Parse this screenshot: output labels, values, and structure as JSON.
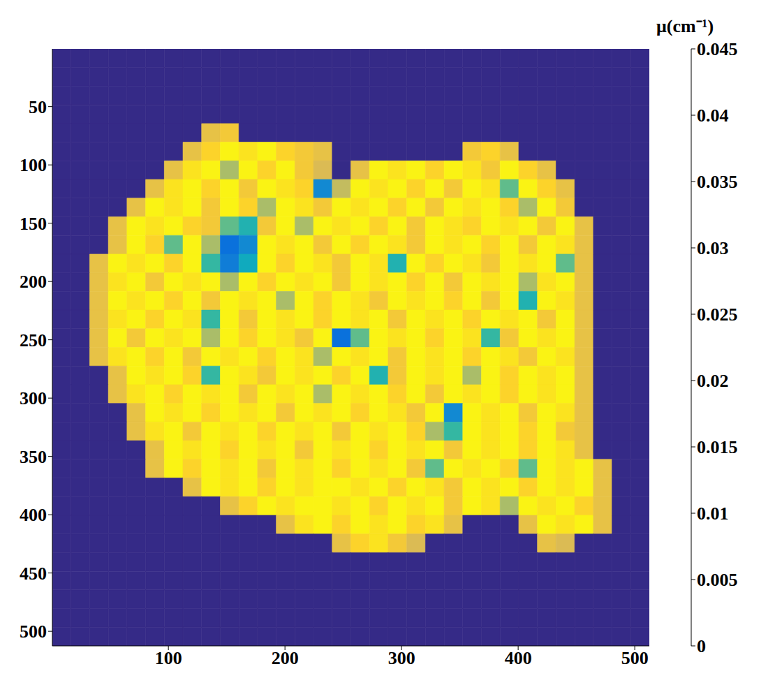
{
  "chart_data": {
    "type": "heatmap",
    "x": [
      8.5,
      24.5,
      40.5,
      56.5,
      72.5,
      88.5,
      104.5,
      120.5,
      136.5,
      152.5,
      168.5,
      184.5,
      200.5,
      216.5,
      232.5,
      248.5,
      264.5,
      280.5,
      296.5,
      312.5,
      328.5,
      344.5,
      360.5,
      376.5,
      392.5,
      408.5,
      424.5,
      440.5,
      456.5,
      472.5,
      488.5,
      504.5
    ],
    "y": [
      8.5,
      24.5,
      40.5,
      56.5,
      72.5,
      88.5,
      104.5,
      120.5,
      136.5,
      152.5,
      168.5,
      184.5,
      200.5,
      216.5,
      232.5,
      248.5,
      264.5,
      280.5,
      296.5,
      312.5,
      328.5,
      344.5,
      360.5,
      376.5,
      392.5,
      408.5,
      424.5,
      440.5,
      456.5,
      472.5,
      488.5,
      504.5
    ],
    "cells": [
      [
        0,
        0,
        0,
        0,
        0,
        0,
        0,
        0,
        0,
        0,
        0,
        0,
        0,
        0,
        0,
        0,
        0,
        0,
        0,
        0,
        0,
        0,
        0,
        0,
        0,
        0,
        0,
        0,
        0,
        0,
        0,
        0
      ],
      [
        0,
        0,
        0,
        0,
        0,
        0,
        0,
        0,
        0,
        0,
        0,
        0,
        0,
        0,
        0,
        0,
        0,
        0,
        0,
        0,
        0,
        0,
        0,
        0,
        0,
        0,
        0,
        0,
        0,
        0,
        0,
        0
      ],
      [
        0,
        0,
        0,
        0,
        0,
        0,
        0,
        0,
        0,
        0,
        0,
        0,
        0,
        0,
        0,
        0,
        0,
        0,
        0,
        0,
        0,
        0,
        0,
        0,
        0,
        0,
        0,
        0,
        0,
        0,
        0,
        0
      ],
      [
        0,
        0,
        0,
        0,
        0,
        0,
        0,
        0,
        0,
        0,
        0,
        0,
        0,
        0,
        0,
        0,
        0,
        0,
        0,
        0,
        0,
        0,
        0,
        0,
        0,
        0,
        0,
        0,
        0,
        0,
        0,
        0
      ],
      [
        0,
        0,
        0,
        0,
        0,
        0,
        0,
        0,
        0.036,
        0.038,
        0,
        0,
        0,
        0,
        0,
        0,
        0,
        0,
        0,
        0,
        0,
        0,
        0,
        0,
        0,
        0,
        0,
        0,
        0,
        0,
        0,
        0
      ],
      [
        0,
        0,
        0,
        0,
        0,
        0,
        0,
        0.036,
        0.04,
        0.044,
        0.042,
        0.044,
        0.04,
        0.038,
        0.036,
        0,
        0,
        0,
        0,
        0,
        0,
        0,
        0.038,
        0.04,
        0.036,
        0,
        0,
        0,
        0,
        0,
        0,
        0
      ],
      [
        0,
        0,
        0,
        0,
        0,
        0,
        0.036,
        0.042,
        0.044,
        0.03,
        0.044,
        0.04,
        0.044,
        0.038,
        0.034,
        0,
        0.036,
        0.044,
        0.042,
        0.044,
        0.04,
        0.044,
        0.042,
        0.038,
        0.044,
        0.04,
        0.036,
        0,
        0,
        0,
        0,
        0
      ],
      [
        0,
        0,
        0,
        0,
        0,
        0.036,
        0.042,
        0.044,
        0.04,
        0.044,
        0.038,
        0.044,
        0.042,
        0.04,
        0.012,
        0.032,
        0.044,
        0.042,
        0.044,
        0.04,
        0.044,
        0.038,
        0.044,
        0.042,
        0.025,
        0.044,
        0.04,
        0.036,
        0,
        0,
        0,
        0
      ],
      [
        0,
        0,
        0,
        0,
        0.036,
        0.044,
        0.042,
        0.044,
        0.038,
        0.044,
        0.04,
        0.03,
        0.044,
        0.042,
        0.038,
        0.044,
        0.042,
        0.044,
        0.04,
        0.044,
        0.038,
        0.044,
        0.042,
        0.044,
        0.04,
        0.03,
        0.044,
        0.038,
        0,
        0,
        0,
        0
      ],
      [
        0,
        0,
        0,
        0.036,
        0.044,
        0.042,
        0.044,
        0.04,
        0.038,
        0.025,
        0.02,
        0.038,
        0.044,
        0.03,
        0.044,
        0.042,
        0.044,
        0.04,
        0.044,
        0.038,
        0.044,
        0.042,
        0.04,
        0.044,
        0.042,
        0.044,
        0.038,
        0.044,
        0.036,
        0,
        0,
        0
      ],
      [
        0,
        0,
        0,
        0.036,
        0.044,
        0.04,
        0.025,
        0.044,
        0.03,
        0.008,
        0.012,
        0.044,
        0.042,
        0.044,
        0.038,
        0.044,
        0.04,
        0.044,
        0.042,
        0.038,
        0.044,
        0.042,
        0.044,
        0.04,
        0.044,
        0.038,
        0.044,
        0.042,
        0.036,
        0,
        0,
        0
      ],
      [
        0,
        0,
        0.036,
        0.044,
        0.042,
        0.044,
        0.04,
        0.044,
        0.022,
        0.01,
        0.018,
        0.044,
        0.04,
        0.044,
        0.042,
        0.038,
        0.044,
        0.042,
        0.02,
        0.044,
        0.04,
        0.044,
        0.042,
        0.038,
        0.044,
        0.042,
        0.044,
        0.025,
        0.036,
        0,
        0,
        0
      ],
      [
        0,
        0,
        0.036,
        0.042,
        0.044,
        0.038,
        0.044,
        0.042,
        0.044,
        0.03,
        0.044,
        0.04,
        0.044,
        0.042,
        0.044,
        0.038,
        0.044,
        0.042,
        0.044,
        0.04,
        0.044,
        0.038,
        0.044,
        0.042,
        0.044,
        0.03,
        0.042,
        0.044,
        0.036,
        0,
        0,
        0
      ],
      [
        0,
        0,
        0.036,
        0.044,
        0.042,
        0.044,
        0.04,
        0.044,
        0.038,
        0.044,
        0.042,
        0.044,
        0.03,
        0.044,
        0.04,
        0.044,
        0.042,
        0.038,
        0.044,
        0.042,
        0.044,
        0.04,
        0.044,
        0.038,
        0.044,
        0.02,
        0.044,
        0.042,
        0.036,
        0,
        0,
        0
      ],
      [
        0,
        0,
        0.036,
        0.042,
        0.044,
        0.04,
        0.044,
        0.042,
        0.022,
        0.044,
        0.038,
        0.044,
        0.042,
        0.044,
        0.04,
        0.044,
        0.042,
        0.044,
        0.038,
        0.044,
        0.042,
        0.044,
        0.04,
        0.044,
        0.042,
        0.044,
        0.038,
        0.044,
        0.036,
        0,
        0,
        0
      ],
      [
        0,
        0,
        0.036,
        0.044,
        0.038,
        0.044,
        0.042,
        0.044,
        0.03,
        0.044,
        0.04,
        0.044,
        0.042,
        0.038,
        0.044,
        0.008,
        0.025,
        0.044,
        0.042,
        0.044,
        0.04,
        0.044,
        0.042,
        0.022,
        0.038,
        0.044,
        0.042,
        0.044,
        0.036,
        0,
        0,
        0
      ],
      [
        0,
        0,
        0.036,
        0.042,
        0.044,
        0.04,
        0.044,
        0.038,
        0.044,
        0.042,
        0.044,
        0.04,
        0.044,
        0.042,
        0.03,
        0.044,
        0.042,
        0.044,
        0.038,
        0.044,
        0.042,
        0.044,
        0.04,
        0.044,
        0.042,
        0.038,
        0.044,
        0.042,
        0.036,
        0,
        0,
        0
      ],
      [
        0,
        0,
        0,
        0.036,
        0.044,
        0.042,
        0.044,
        0.04,
        0.022,
        0.044,
        0.042,
        0.038,
        0.044,
        0.042,
        0.044,
        0.04,
        0.044,
        0.02,
        0.038,
        0.044,
        0.042,
        0.044,
        0.03,
        0.044,
        0.04,
        0.044,
        0.042,
        0.044,
        0.036,
        0,
        0,
        0
      ],
      [
        0,
        0,
        0,
        0.036,
        0.042,
        0.044,
        0.04,
        0.044,
        0.042,
        0.044,
        0.038,
        0.044,
        0.042,
        0.044,
        0.03,
        0.044,
        0.042,
        0.044,
        0.04,
        0.044,
        0.038,
        0.044,
        0.042,
        0.044,
        0.04,
        0.044,
        0.042,
        0.044,
        0.036,
        0,
        0,
        0
      ],
      [
        0,
        0,
        0,
        0,
        0.036,
        0.044,
        0.042,
        0.044,
        0.04,
        0.044,
        0.042,
        0.044,
        0.038,
        0.044,
        0.042,
        0.044,
        0.04,
        0.044,
        0.042,
        0.038,
        0.044,
        0.012,
        0.044,
        0.042,
        0.044,
        0.038,
        0.044,
        0.042,
        0.036,
        0,
        0,
        0
      ],
      [
        0,
        0,
        0,
        0,
        0.036,
        0.042,
        0.044,
        0.038,
        0.044,
        0.042,
        0.044,
        0.04,
        0.044,
        0.042,
        0.044,
        0.038,
        0.044,
        0.042,
        0.044,
        0.04,
        0.03,
        0.022,
        0.044,
        0.042,
        0.044,
        0.04,
        0.044,
        0.038,
        0.036,
        0,
        0,
        0
      ],
      [
        0,
        0,
        0,
        0,
        0,
        0.036,
        0.044,
        0.042,
        0.044,
        0.04,
        0.044,
        0.042,
        0.044,
        0.038,
        0.044,
        0.042,
        0.044,
        0.04,
        0.044,
        0.042,
        0.044,
        0.038,
        0.044,
        0.042,
        0.044,
        0.04,
        0.044,
        0.042,
        0.036,
        0,
        0,
        0
      ],
      [
        0,
        0,
        0,
        0,
        0,
        0.036,
        0.044,
        0.04,
        0.044,
        0.042,
        0.044,
        0.038,
        0.044,
        0.042,
        0.044,
        0.04,
        0.044,
        0.042,
        0.044,
        0.038,
        0.025,
        0.044,
        0.042,
        0.044,
        0.04,
        0.025,
        0.044,
        0.042,
        0.044,
        0.036,
        0,
        0
      ],
      [
        0,
        0,
        0,
        0,
        0,
        0,
        0,
        0.036,
        0.044,
        0.042,
        0.044,
        0.04,
        0.044,
        0.042,
        0.044,
        0.044,
        0.042,
        0.044,
        0.04,
        0.044,
        0.042,
        0.038,
        0.044,
        0.042,
        0.044,
        0.04,
        0.044,
        0.042,
        0.044,
        0.036,
        0,
        0
      ],
      [
        0,
        0,
        0,
        0,
        0,
        0,
        0,
        0,
        0,
        0.036,
        0.04,
        0.044,
        0.042,
        0.044,
        0.044,
        0.042,
        0.044,
        0.04,
        0.044,
        0.042,
        0.044,
        0.038,
        0.044,
        0.042,
        0.03,
        0.044,
        0.042,
        0.044,
        0.04,
        0.036,
        0,
        0
      ],
      [
        0,
        0,
        0,
        0,
        0,
        0,
        0,
        0,
        0,
        0,
        0,
        0,
        0.036,
        0.042,
        0.044,
        0.04,
        0.044,
        0.042,
        0.044,
        0.04,
        0.042,
        0.036,
        0,
        0,
        0,
        0.036,
        0.044,
        0.042,
        0.044,
        0.036,
        0,
        0
      ],
      [
        0,
        0,
        0,
        0,
        0,
        0,
        0,
        0,
        0,
        0,
        0,
        0,
        0,
        0,
        0,
        0.036,
        0.04,
        0.042,
        0.038,
        0.034,
        0,
        0,
        0,
        0,
        0,
        0,
        0.036,
        0.034,
        0,
        0,
        0,
        0
      ],
      [
        0,
        0,
        0,
        0,
        0,
        0,
        0,
        0,
        0,
        0,
        0,
        0,
        0,
        0,
        0,
        0,
        0,
        0,
        0,
        0,
        0,
        0,
        0,
        0,
        0,
        0,
        0,
        0,
        0,
        0,
        0,
        0
      ],
      [
        0,
        0,
        0,
        0,
        0,
        0,
        0,
        0,
        0,
        0,
        0,
        0,
        0,
        0,
        0,
        0,
        0,
        0,
        0,
        0,
        0,
        0,
        0,
        0,
        0,
        0,
        0,
        0,
        0,
        0,
        0,
        0
      ],
      [
        0,
        0,
        0,
        0,
        0,
        0,
        0,
        0,
        0,
        0,
        0,
        0,
        0,
        0,
        0,
        0,
        0,
        0,
        0,
        0,
        0,
        0,
        0,
        0,
        0,
        0,
        0,
        0,
        0,
        0,
        0,
        0
      ],
      [
        0,
        0,
        0,
        0,
        0,
        0,
        0,
        0,
        0,
        0,
        0,
        0,
        0,
        0,
        0,
        0,
        0,
        0,
        0,
        0,
        0,
        0,
        0,
        0,
        0,
        0,
        0,
        0,
        0,
        0,
        0,
        0
      ],
      [
        0,
        0,
        0,
        0,
        0,
        0,
        0,
        0,
        0,
        0,
        0,
        0,
        0,
        0,
        0,
        0,
        0,
        0,
        0,
        0,
        0,
        0,
        0,
        0,
        0,
        0,
        0,
        0,
        0,
        0,
        0,
        0
      ]
    ],
    "xlim": [
      0.5,
      512.5
    ],
    "ylim": [
      0.5,
      512.5
    ],
    "xticks": [
      100,
      200,
      300,
      400,
      500
    ],
    "yticks": [
      50,
      100,
      150,
      200,
      250,
      300,
      350,
      400,
      450,
      500
    ],
    "colorbar": {
      "label": "μ(cm⁻¹)",
      "range": [
        0,
        0.045
      ],
      "ticks": [
        0,
        0.005,
        0.01,
        0.015,
        0.02,
        0.025,
        0.03,
        0.035,
        0.04,
        0.045
      ]
    }
  }
}
